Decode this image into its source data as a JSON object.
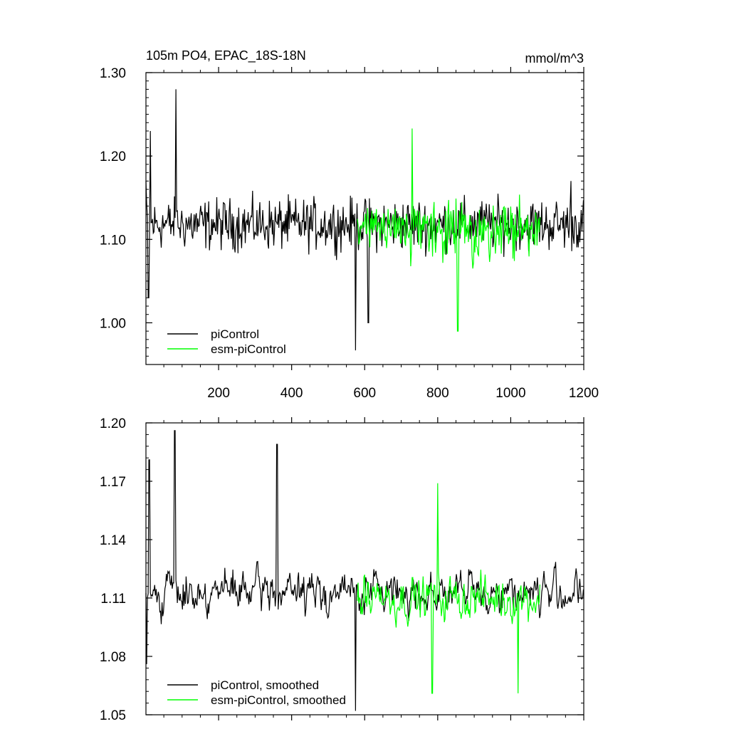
{
  "chart_data": [
    {
      "type": "line",
      "title": "105m PO4, EPAC_18S-18N",
      "units": "mmol/m^3",
      "xlim": [
        1,
        1200
      ],
      "ylim": [
        0.95,
        1.3
      ],
      "x_ticks": [
        200,
        400,
        600,
        800,
        1000,
        1200
      ],
      "y_ticks": [
        "1.00",
        "1.10",
        "1.20",
        "1.30"
      ],
      "y_tick_values": [
        1.0,
        1.1,
        1.2,
        1.3
      ],
      "series": [
        {
          "name": "piControl",
          "color": "#000000",
          "x_start": 1,
          "x_end": 1200,
          "mean": 1.118,
          "amplitude": 0.045,
          "highlights": [
            [
              1,
              1.17
            ],
            [
              8,
              1.03
            ],
            [
              13,
              1.23
            ],
            [
              83,
              1.28
            ],
            [
              575,
              0.967
            ],
            [
              610,
              1.0
            ],
            [
              1165,
              1.17
            ]
          ]
        },
        {
          "name": "esm-piControl",
          "color": "#00ff00",
          "x_start": 580,
          "x_end": 1080,
          "mean": 1.11,
          "amplitude": 0.05,
          "highlights": [
            [
              730,
              1.233
            ],
            [
              855,
              0.99
            ]
          ]
        }
      ],
      "legend": {
        "position": "bottom-left",
        "entries": [
          "piControl",
          "esm-piControl"
        ]
      },
      "grid": false
    },
    {
      "type": "line",
      "xlim": [
        1,
        1200
      ],
      "ylim": [
        1.05,
        1.2
      ],
      "y_ticks": [
        "1.05",
        "1.08",
        "1.11",
        "1.14",
        "1.17",
        "1.20"
      ],
      "y_tick_values": [
        1.05,
        1.08,
        1.11,
        1.14,
        1.17,
        1.2
      ],
      "series": [
        {
          "name": "piControl, smoothed",
          "color": "#000000",
          "x_start": 1,
          "x_end": 1200,
          "mean": 1.113,
          "amplitude": 0.018,
          "highlights": [
            [
              3,
              1.076
            ],
            [
              10,
              1.181
            ],
            [
              80,
              1.196
            ],
            [
              360,
              1.189
            ],
            [
              575,
              1.052
            ]
          ]
        },
        {
          "name": "esm-piControl, smoothed",
          "color": "#00ff00",
          "x_start": 580,
          "x_end": 1080,
          "mean": 1.11,
          "amplitude": 0.02,
          "highlights": [
            [
              800,
              1.169
            ],
            [
              785,
              1.061
            ],
            [
              1020,
              1.061
            ]
          ]
        }
      ],
      "legend": {
        "position": "bottom-left",
        "entries": [
          "piControl, smoothed",
          "esm-piControl, smoothed"
        ]
      },
      "grid": false
    }
  ]
}
